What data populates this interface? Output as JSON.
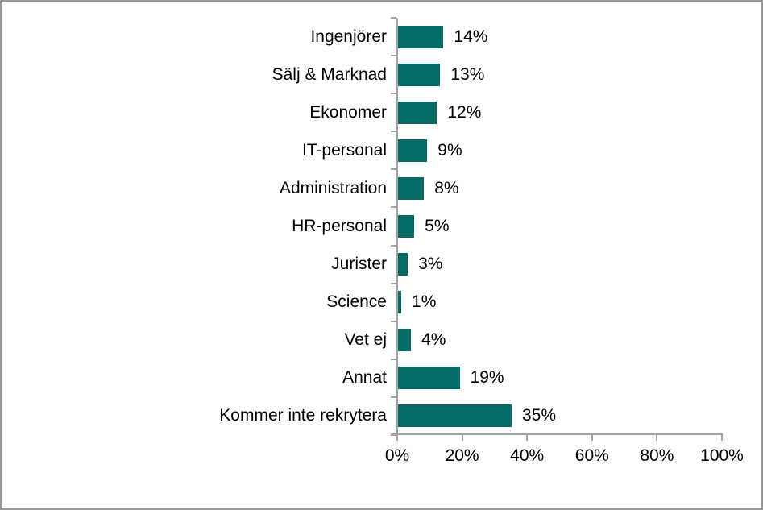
{
  "frame": {
    "background_color": "#ffffff",
    "border_color": "#999999"
  },
  "chart_data": {
    "type": "bar",
    "orientation": "horizontal",
    "title": "",
    "xlabel": "",
    "ylabel": "",
    "categories": [
      "Ingenjörer",
      "Sälj & Marknad",
      "Ekonomer",
      "IT-personal",
      "Administration",
      "HR-personal",
      "Jurister",
      "Science",
      "Vet ej",
      "Annat",
      "Kommer inte rekrytera"
    ],
    "values": [
      14,
      13,
      12,
      9,
      8,
      5,
      3,
      1,
      4,
      19,
      35
    ],
    "data_labels": [
      "14%",
      "13%",
      "12%",
      "9%",
      "8%",
      "5%",
      "3%",
      "1%",
      "4%",
      "19%",
      "35%"
    ],
    "xlim": [
      0,
      100
    ],
    "x_tick_values": [
      0,
      20,
      40,
      60,
      80,
      100
    ],
    "x_tick_labels": [
      "0%",
      "20%",
      "40%",
      "60%",
      "80%",
      "100%"
    ],
    "grid": false,
    "legend": false,
    "bar_color": "#056b66",
    "axis_color": "#a3a3a3",
    "text_color": "#000000"
  }
}
